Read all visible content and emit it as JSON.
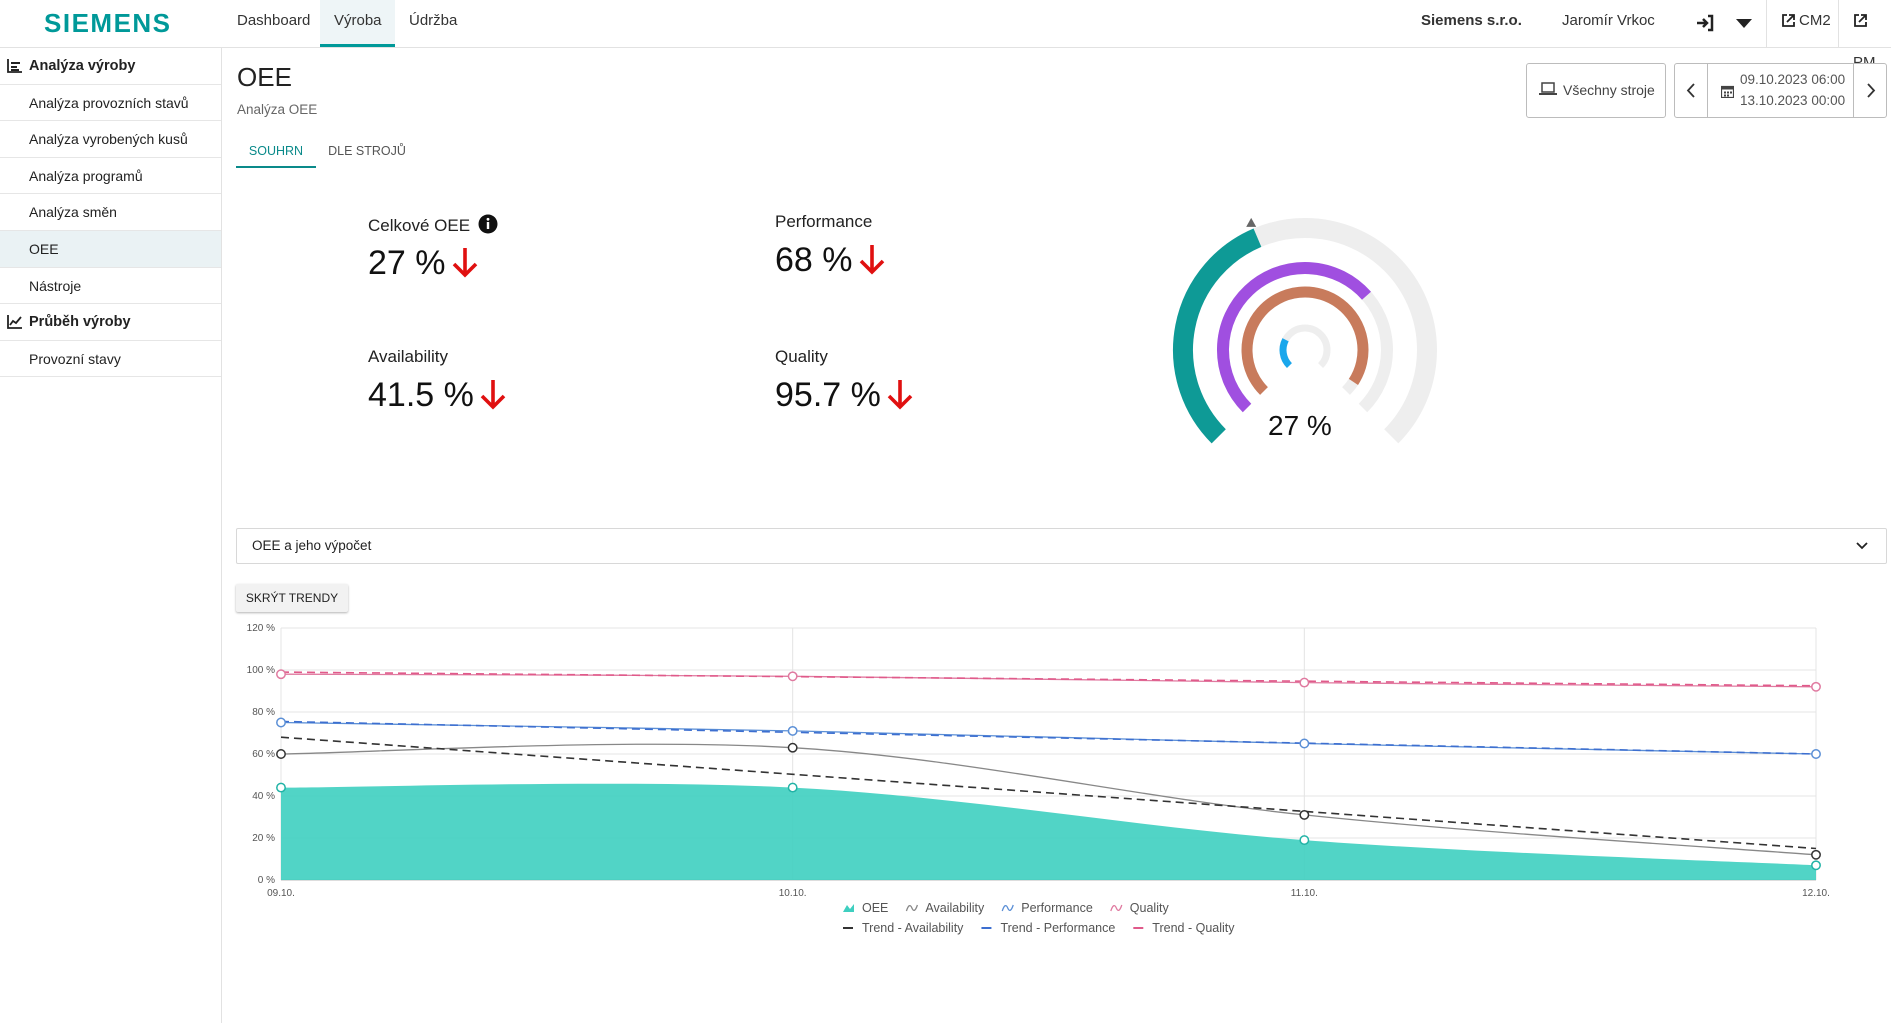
{
  "header": {
    "logo": "SIEMENS",
    "nav": [
      "Dashboard",
      "Výroba",
      "Údržba"
    ],
    "company": "Siemens s.r.o.",
    "user": "Jaromír Vrkoc",
    "links": [
      "CM2",
      "PM"
    ],
    "icons": [
      "logout-icon",
      "chevron-down-icon",
      "external-link-icon"
    ]
  },
  "sidebar": {
    "groups": [
      {
        "label": "Analýza výroby",
        "icon": "bar-chart-icon",
        "items": [
          "Analýza provozních stavů",
          "Analýza vyrobených kusů",
          "Analýza programů",
          "Analýza směn",
          "OEE",
          "Nástroje"
        ]
      },
      {
        "label": "Průběh výroby",
        "icon": "line-chart-icon",
        "items": [
          "Provozní stavy"
        ]
      }
    ],
    "active": "OEE"
  },
  "page": {
    "title": "OEE",
    "subtitle": "Analýza OEE",
    "tabs": [
      "SOUHRN",
      "DLE STROJŮ"
    ],
    "active_tab": "SOUHRN",
    "machines_button": "Všechny stroje",
    "date_from": "09.10.2023 06:00",
    "date_to": "13.10.2023 00:00"
  },
  "kpis": {
    "oee": {
      "label": "Celkové OEE",
      "value": "27 %",
      "trend": "down"
    },
    "performance": {
      "label": "Performance",
      "value": "68 %",
      "trend": "down"
    },
    "availability": {
      "label": "Availability",
      "value": "41.5 %",
      "trend": "down"
    },
    "quality": {
      "label": "Quality",
      "value": "95.7 %",
      "trend": "down"
    }
  },
  "gauge": {
    "center_text": "27 %",
    "rings": [
      {
        "name": "Availability",
        "value": 41.5,
        "color": "#0e9a96"
      },
      {
        "name": "Performance",
        "value": 68,
        "color": "#a04fe0"
      },
      {
        "name": "Quality",
        "value": 95.7,
        "color": "#c87b5c"
      },
      {
        "name": "OEE",
        "value": 27,
        "color": "#1aa7ec"
      }
    ]
  },
  "accordion": {
    "label": "OEE a jeho výpočet"
  },
  "hide_trends_button": "SKRÝT TRENDY",
  "chart_data": {
    "type": "line",
    "x": [
      "09.10.",
      "10.10.",
      "11.10.",
      "12.10."
    ],
    "ylim": [
      0,
      120
    ],
    "yticks": [
      "0 %",
      "20 %",
      "40 %",
      "60 %",
      "80 %",
      "100 %",
      "120 %"
    ],
    "grid": true,
    "legend_placement": "bottom",
    "series": [
      {
        "name": "OEE",
        "type": "area",
        "color": "#3ecfc0",
        "values": [
          44,
          44,
          19,
          7
        ]
      },
      {
        "name": "Availability",
        "type": "line",
        "color": "#888888",
        "values": [
          60,
          63,
          31,
          12
        ]
      },
      {
        "name": "Performance",
        "type": "line",
        "color": "#5b8fd6",
        "values": [
          75,
          71,
          65,
          60
        ]
      },
      {
        "name": "Quality",
        "type": "line",
        "color": "#e07aa0",
        "values": [
          98,
          97,
          94,
          92
        ]
      },
      {
        "name": "Trend - Availability",
        "type": "trend",
        "color": "#333333",
        "values": [
          68,
          50,
          33,
          15
        ]
      },
      {
        "name": "Trend - Performance",
        "type": "trend",
        "color": "#3d6fd0",
        "values": [
          75.5,
          70,
          65,
          60
        ]
      },
      {
        "name": "Trend - Quality",
        "type": "trend",
        "color": "#e05a8a",
        "values": [
          99,
          97,
          95,
          92.5
        ]
      }
    ]
  }
}
